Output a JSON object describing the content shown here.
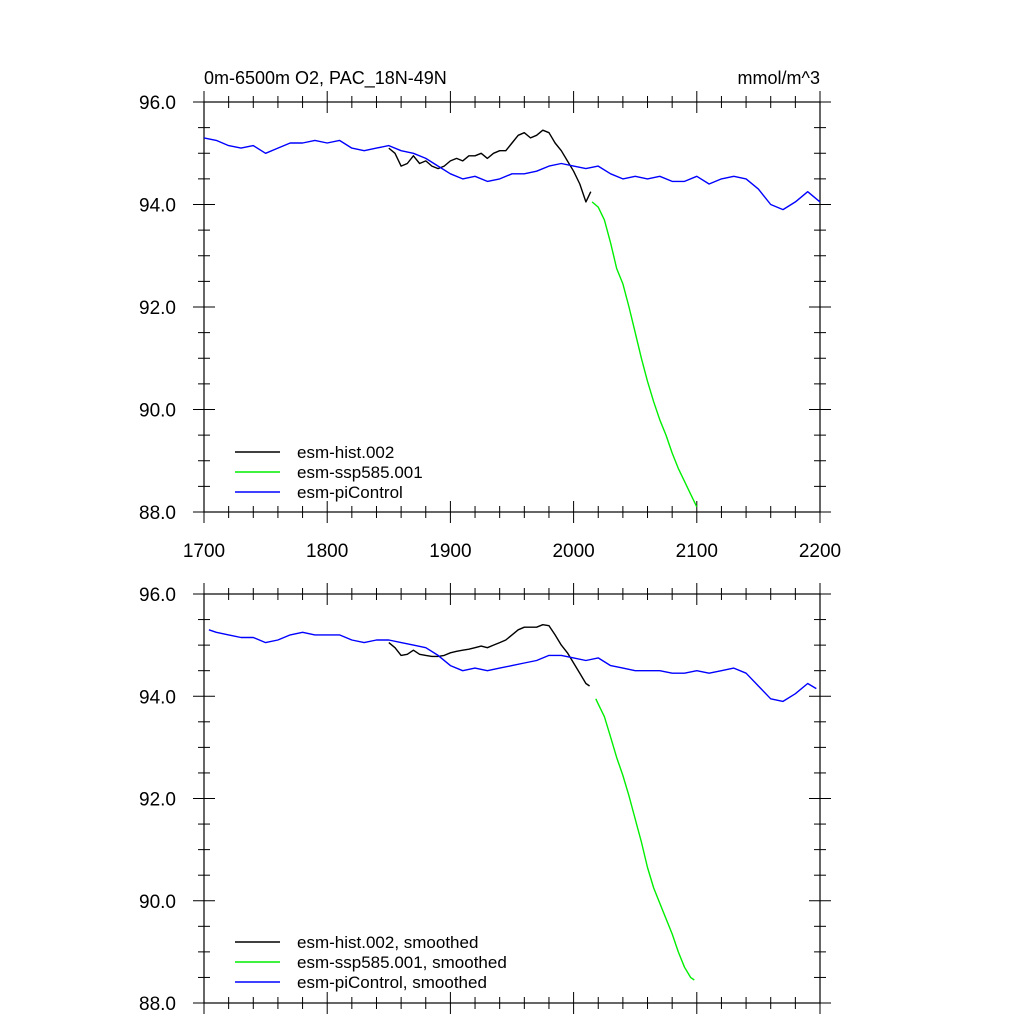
{
  "colors": {
    "hist": "#000000",
    "ssp": "#00ee00",
    "pi": "#0000ff",
    "axis": "#000000",
    "background": "#ffffff"
  },
  "chart_data": [
    {
      "type": "line",
      "title": "0m-6500m O2, PAC_18N-49N",
      "units": "mmol/m^3",
      "xlim": [
        1700,
        2200
      ],
      "ylim": [
        88.0,
        96.0
      ],
      "xticks": [
        "1700",
        "1800",
        "1900",
        "2000",
        "2100",
        "2200"
      ],
      "yticks": [
        "88.0",
        "90.0",
        "92.0",
        "94.0",
        "96.0"
      ],
      "legend_position": "bottom-left",
      "series": [
        {
          "name": "esm-hist.002",
          "color": "#000000",
          "x": [
            1850,
            1855,
            1860,
            1865,
            1870,
            1875,
            1880,
            1885,
            1890,
            1895,
            1900,
            1905,
            1910,
            1915,
            1920,
            1925,
            1930,
            1935,
            1940,
            1945,
            1950,
            1955,
            1960,
            1965,
            1970,
            1975,
            1980,
            1985,
            1990,
            1995,
            2000,
            2005,
            2010,
            2014
          ],
          "y": [
            95.1,
            95.0,
            94.75,
            94.8,
            94.95,
            94.8,
            94.85,
            94.75,
            94.7,
            94.75,
            94.85,
            94.9,
            94.85,
            94.95,
            94.95,
            95.0,
            94.9,
            95.0,
            95.05,
            95.05,
            95.2,
            95.35,
            95.4,
            95.3,
            95.35,
            95.45,
            95.4,
            95.2,
            95.05,
            94.85,
            94.65,
            94.4,
            94.05,
            94.25
          ]
        },
        {
          "name": "esm-ssp585.001",
          "color": "#00ee00",
          "x": [
            2015,
            2020,
            2025,
            2030,
            2035,
            2040,
            2045,
            2050,
            2055,
            2060,
            2065,
            2070,
            2075,
            2080,
            2085,
            2090,
            2095,
            2100
          ],
          "y": [
            94.05,
            93.95,
            93.7,
            93.25,
            92.75,
            92.45,
            92.0,
            91.5,
            91.0,
            90.55,
            90.15,
            89.8,
            89.5,
            89.15,
            88.85,
            88.6,
            88.35,
            88.1
          ]
        },
        {
          "name": "esm-piControl",
          "color": "#0000ff",
          "x": [
            1700,
            1710,
            1720,
            1730,
            1740,
            1750,
            1760,
            1770,
            1780,
            1790,
            1800,
            1810,
            1820,
            1830,
            1840,
            1850,
            1860,
            1870,
            1880,
            1890,
            1900,
            1910,
            1920,
            1930,
            1940,
            1950,
            1960,
            1970,
            1980,
            1990,
            2000,
            2010,
            2020,
            2030,
            2040,
            2050,
            2060,
            2070,
            2080,
            2090,
            2100,
            2110,
            2120,
            2130,
            2140,
            2150,
            2160,
            2170,
            2180,
            2190,
            2200
          ],
          "y": [
            95.3,
            95.25,
            95.15,
            95.1,
            95.15,
            95.0,
            95.1,
            95.2,
            95.2,
            95.25,
            95.2,
            95.25,
            95.1,
            95.05,
            95.1,
            95.15,
            95.05,
            95.0,
            94.9,
            94.75,
            94.6,
            94.5,
            94.55,
            94.45,
            94.5,
            94.6,
            94.6,
            94.65,
            94.75,
            94.8,
            94.75,
            94.7,
            94.75,
            94.6,
            94.5,
            94.55,
            94.5,
            94.55,
            94.45,
            94.45,
            94.55,
            94.4,
            94.5,
            94.55,
            94.5,
            94.3,
            94.0,
            93.9,
            94.05,
            94.25,
            94.05
          ]
        }
      ]
    },
    {
      "type": "line",
      "xlim": [
        1700,
        2200
      ],
      "ylim": [
        88.0,
        96.0
      ],
      "yticks": [
        "88.0",
        "90.0",
        "92.0",
        "94.0",
        "96.0"
      ],
      "legend_position": "bottom-left",
      "series": [
        {
          "name": "esm-hist.002, smoothed",
          "color": "#000000",
          "x": [
            1850,
            1855,
            1860,
            1865,
            1870,
            1875,
            1880,
            1885,
            1890,
            1895,
            1900,
            1905,
            1910,
            1915,
            1920,
            1925,
            1930,
            1935,
            1940,
            1945,
            1950,
            1955,
            1960,
            1965,
            1970,
            1975,
            1980,
            1985,
            1990,
            1995,
            2000,
            2005,
            2010,
            2013
          ],
          "y": [
            95.05,
            94.95,
            94.8,
            94.82,
            94.9,
            94.82,
            94.8,
            94.78,
            94.78,
            94.8,
            94.85,
            94.88,
            94.9,
            94.92,
            94.95,
            94.98,
            94.95,
            95.0,
            95.05,
            95.1,
            95.2,
            95.3,
            95.35,
            95.35,
            95.35,
            95.4,
            95.38,
            95.2,
            95.0,
            94.85,
            94.65,
            94.45,
            94.25,
            94.2
          ]
        },
        {
          "name": "esm-ssp585.001, smoothed",
          "color": "#00ee00",
          "x": [
            2018,
            2020,
            2025,
            2030,
            2035,
            2040,
            2045,
            2050,
            2055,
            2060,
            2065,
            2070,
            2075,
            2080,
            2085,
            2090,
            2095,
            2098
          ],
          "y": [
            93.95,
            93.85,
            93.6,
            93.2,
            92.8,
            92.45,
            92.05,
            91.6,
            91.15,
            90.65,
            90.25,
            89.95,
            89.65,
            89.35,
            89.0,
            88.7,
            88.5,
            88.45
          ]
        },
        {
          "name": "esm-piControl, smoothed",
          "color": "#0000ff",
          "x": [
            1704,
            1710,
            1720,
            1730,
            1740,
            1750,
            1760,
            1770,
            1780,
            1790,
            1800,
            1810,
            1820,
            1830,
            1840,
            1850,
            1860,
            1870,
            1880,
            1890,
            1900,
            1910,
            1920,
            1930,
            1940,
            1950,
            1960,
            1970,
            1980,
            1990,
            2000,
            2010,
            2020,
            2030,
            2040,
            2050,
            2060,
            2070,
            2080,
            2090,
            2100,
            2110,
            2120,
            2130,
            2140,
            2150,
            2160,
            2170,
            2180,
            2190,
            2197
          ],
          "y": [
            95.3,
            95.25,
            95.2,
            95.15,
            95.15,
            95.05,
            95.1,
            95.2,
            95.25,
            95.2,
            95.2,
            95.2,
            95.1,
            95.05,
            95.1,
            95.1,
            95.05,
            95.0,
            94.95,
            94.8,
            94.6,
            94.5,
            94.55,
            94.5,
            94.55,
            94.6,
            94.65,
            94.7,
            94.8,
            94.8,
            94.75,
            94.7,
            94.75,
            94.6,
            94.55,
            94.5,
            94.5,
            94.5,
            94.45,
            94.45,
            94.5,
            94.45,
            94.5,
            94.55,
            94.45,
            94.2,
            93.95,
            93.9,
            94.05,
            94.25,
            94.15
          ]
        }
      ]
    }
  ]
}
